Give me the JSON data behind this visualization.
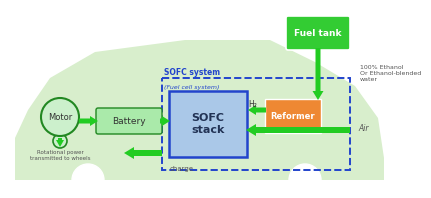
{
  "bg_color": "#ffffff",
  "car_color": "#d8eecc",
  "sofc_system_box_color": "#2244cc",
  "sofc_stack_fill": "#aac8e8",
  "sofc_stack_edge": "#2244cc",
  "battery_fill": "#aaeaaa",
  "battery_edge": "#228822",
  "motor_fill": "#ccf0cc",
  "motor_edge": "#228822",
  "reformer_fill": "#ee8833",
  "reformer_edge": "#cc6600",
  "fuel_tank_fill": "#33cc33",
  "fuel_tank_edge": "#228822",
  "arrow_green": "#22cc22",
  "arrow_dark": "#11aa11",
  "label_sofc_system": "SOFC system",
  "label_fuel_cell": "(Fuel cell system)",
  "label_sofc_stack": "SOFC\nstack",
  "label_battery": "Battery",
  "label_motor": "Motor",
  "label_reformer": "Reformer",
  "label_fuel_tank": "Fuel tank",
  "label_h2": "H₂",
  "label_charge": "charge",
  "label_rotation": "Rotational power\ntransmitted to wheels",
  "label_ethanol": "100% Ethanol\nOr Ethanol-blended\nwater",
  "label_air": "Air",
  "sofc_label_color": "#2244cc",
  "text_gray": "#555555",
  "text_dark": "#333333"
}
